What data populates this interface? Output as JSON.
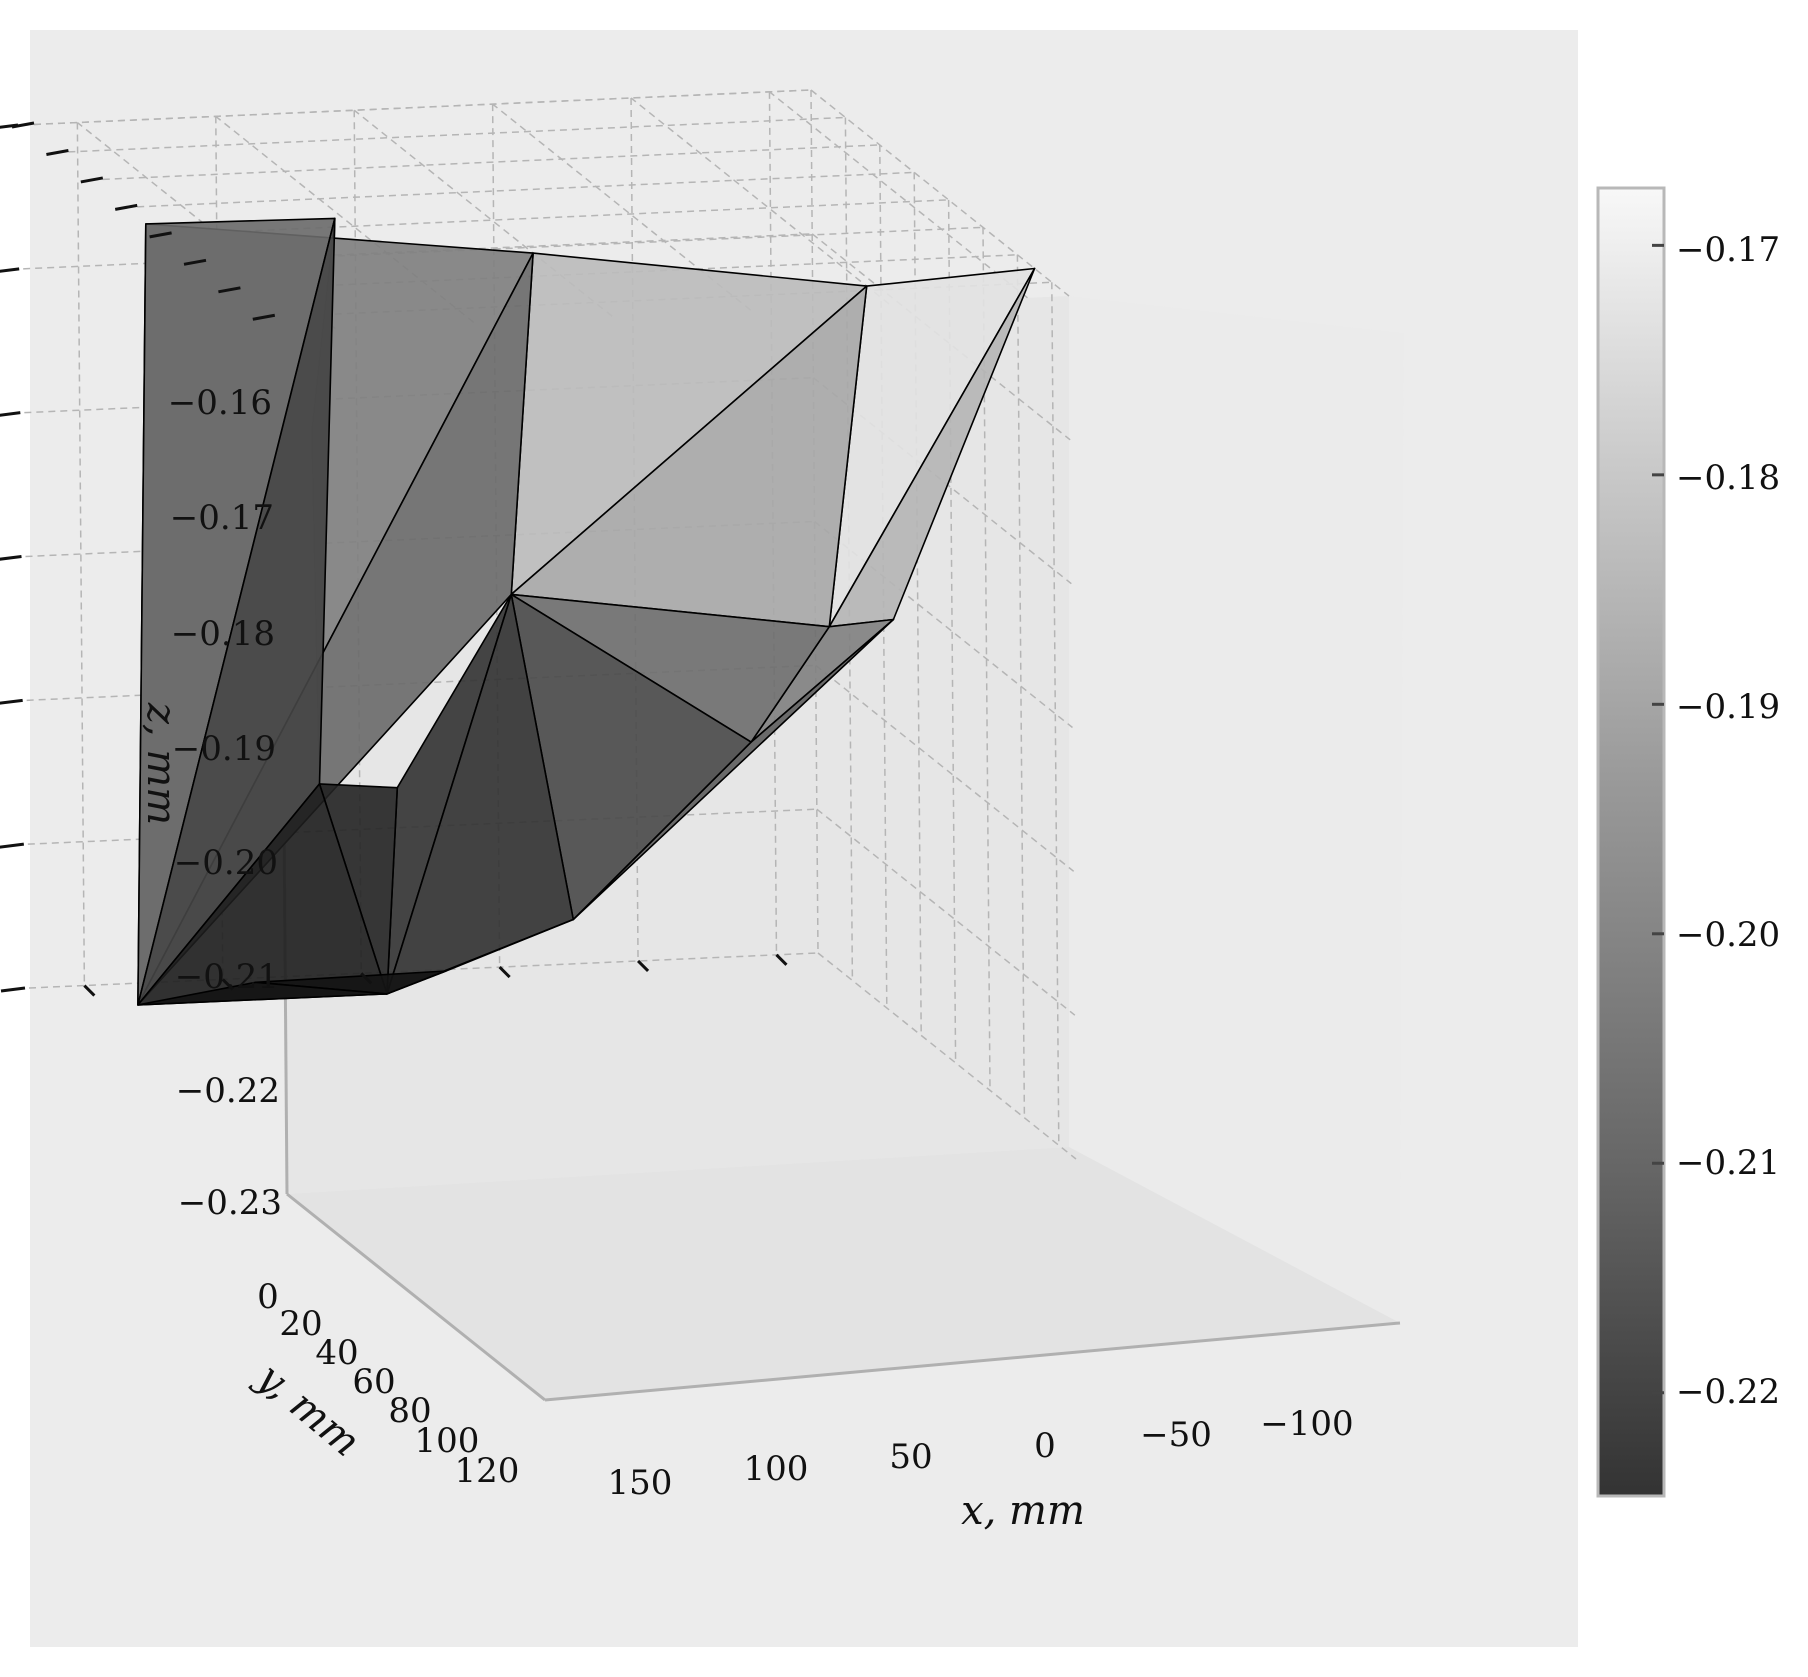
{
  "chart_data": {
    "type": "surface3d",
    "xlabel": "x, mm",
    "ylabel": "y, mm",
    "zlabel": "z, mm",
    "x_ticks": [
      "150",
      "100",
      "50",
      "0",
      "−50",
      "−100"
    ],
    "y_ticks": [
      "0",
      "20",
      "40",
      "60",
      "80",
      "100",
      "120"
    ],
    "z_ticks": [
      "−0.16",
      "−0.17",
      "−0.18",
      "−0.19",
      "−0.20",
      "−0.21",
      "−0.22",
      "−0.23"
    ],
    "colorbar_ticks": [
      "−0.17",
      "−0.18",
      "−0.19",
      "−0.20",
      "−0.21",
      "−0.22"
    ],
    "colorbar_range": [
      -0.2245,
      -0.1675
    ],
    "colormap": "grayscale",
    "grid": true,
    "vertices": [
      {
        "id": "A",
        "x": 170,
        "y": 0,
        "z": -0.194
      },
      {
        "id": "B",
        "x": 103,
        "y": 0,
        "z": -0.193
      },
      {
        "id": "C",
        "x": 50,
        "y": 0,
        "z": -0.178
      },
      {
        "id": "D",
        "x": -50,
        "y": 0,
        "z": -0.1615
      },
      {
        "id": "E",
        "x": -115,
        "y": 0,
        "z": -0.165
      },
      {
        "id": "F",
        "x": 110,
        "y": 30,
        "z": -0.1945
      },
      {
        "id": "G",
        "x": -75,
        "y": 60,
        "z": -0.1935
      },
      {
        "id": "H",
        "x": -100,
        "y": 60,
        "z": -0.195
      },
      {
        "id": "I",
        "x": 75,
        "y": 90,
        "z": -0.2215
      },
      {
        "id": "J",
        "x": 20,
        "y": 60,
        "z": -0.2095
      },
      {
        "id": "K",
        "x": -60,
        "y": 80,
        "z": -0.2045
      },
      {
        "id": "L",
        "x": 50,
        "y": 90,
        "z": -0.219
      },
      {
        "id": "M",
        "x": 140,
        "y": 120,
        "z": -0.2225
      },
      {
        "id": "N",
        "x": 50,
        "y": 120,
        "z": -0.2225
      },
      {
        "id": "O",
        "x": -15,
        "y": 110,
        "z": -0.2205
      },
      {
        "id": "P",
        "x": 90,
        "y": 120,
        "z": -0.2285
      },
      {
        "id": "Q",
        "x": 20,
        "y": 120,
        "z": -0.2295
      }
    ],
    "faces": [
      [
        "A",
        "B",
        "M"
      ],
      [
        "B",
        "F",
        "I"
      ],
      [
        "B",
        "I",
        "M"
      ],
      [
        "A",
        "C",
        "M"
      ],
      [
        "C",
        "J",
        "M"
      ],
      [
        "C",
        "D",
        "J"
      ],
      [
        "D",
        "E",
        "G"
      ],
      [
        "E",
        "H",
        "G"
      ],
      [
        "D",
        "G",
        "J"
      ],
      [
        "G",
        "K",
        "J"
      ],
      [
        "G",
        "H",
        "K"
      ],
      [
        "H",
        "O",
        "K"
      ],
      [
        "I",
        "L",
        "N"
      ],
      [
        "J",
        "L",
        "N"
      ],
      [
        "J",
        "K",
        "O"
      ],
      [
        "J",
        "O",
        "N"
      ],
      [
        "I",
        "N",
        "M"
      ],
      [
        "M",
        "N",
        "P"
      ],
      [
        "N",
        "Q",
        "P"
      ],
      [
        "N",
        "O",
        "Q"
      ]
    ]
  }
}
